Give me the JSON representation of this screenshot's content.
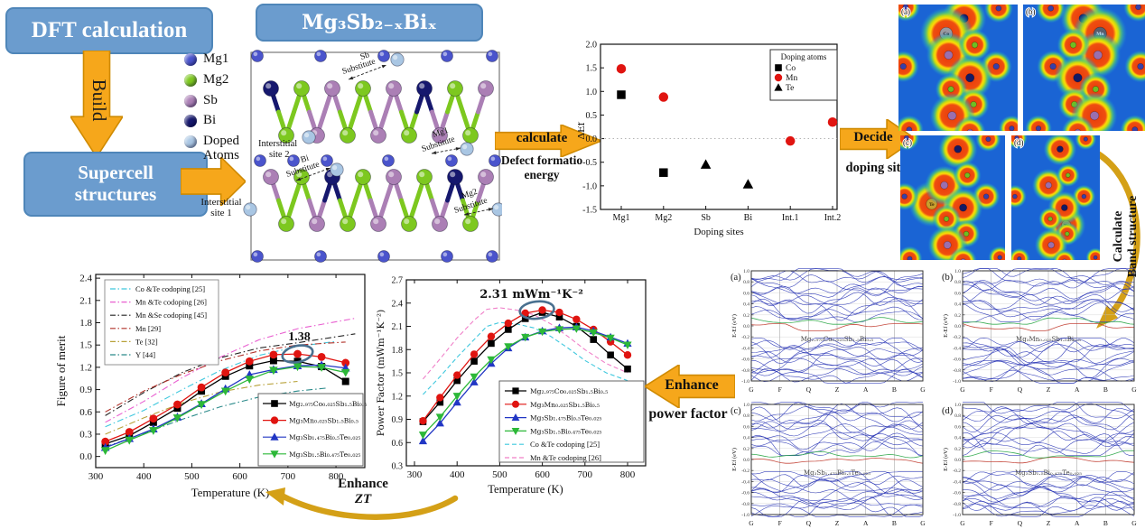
{
  "flow": {
    "dft_box_label": "DFT calculation",
    "build_label": "Build",
    "supercell_box_label": "Supercell structures",
    "calculate_arrow_label": "calculate",
    "calculate_sublabel_line1": "Defect formatio",
    "calculate_sublabel_line2": "energy",
    "decide_arrow_label": "Decide",
    "decide_sublabel": "doping sites",
    "calculate_band_line1": "Calculate",
    "calculate_band_line2": "Band structure",
    "enhance_pf_label": "Enhance",
    "enhance_pf_sublabel": "power factor",
    "enhance_zt_label": "Enhance",
    "enhance_zt_sublabel": "ZT",
    "arrow_color": "#F6A71B",
    "curve_color": "#D4A017"
  },
  "structure_panel": {
    "title": "Mg₃Sb₂₋ₓBiₓ",
    "box_color": "#6B9CCE",
    "legend": [
      {
        "label": "Mg1",
        "color": "#4A54CC"
      },
      {
        "label": "Mg2",
        "color": "#7DC81F"
      },
      {
        "label": "Sb",
        "color": "#AB7FB5"
      },
      {
        "label": "Bi",
        "color": "#16186E"
      },
      {
        "label": "Doped Atoms",
        "color": "#A9C6E3"
      }
    ],
    "site_labels": {
      "sb_substitute": {
        "line1": "Sb",
        "line2": "Substitute"
      },
      "interstitial_site2": {
        "line1": "Interstitial",
        "line2": "site 2"
      },
      "bi_substitute": {
        "line1": "Bi",
        "line2": "Substitute"
      },
      "mg1_substitute": {
        "line1": "Mg1",
        "line2": "Substitute"
      },
      "mg2_substitute": {
        "line1": "Mg2",
        "line2": "Substitute"
      },
      "interstitial_site1": {
        "line1": "Interstitial",
        "line2": "site 1"
      }
    }
  },
  "charge_density_panel": {
    "panel_labels": [
      "(a)",
      "(b)",
      "(c)",
      "(d)"
    ],
    "atom_labels": [
      "Co",
      "Mn",
      "Te",
      "Te"
    ]
  },
  "chart_data": [
    {
      "id": "defect_formation",
      "type": "scatter",
      "xlabel": "Doping sites",
      "ylabel": "ΔEf",
      "categories": [
        "Mg1",
        "Mg2",
        "Sb",
        "Bi",
        "Int.1",
        "Int.2"
      ],
      "ylim": [
        -1.5,
        2.0
      ],
      "yticks": [
        2.0,
        1.5,
        1.0,
        0.5,
        0.0,
        -0.5,
        -1.0,
        -1.5
      ],
      "legend_title": "Doping atoms",
      "zero_line": true,
      "series": [
        {
          "name": "Co",
          "marker": "square",
          "color": "#000000",
          "points": [
            [
              "Mg1",
              0.93
            ],
            [
              "Mg2",
              -0.72
            ]
          ]
        },
        {
          "name": "Mn",
          "marker": "circle",
          "color": "#E01410",
          "points": [
            [
              "Mg1",
              1.48
            ],
            [
              "Mg2",
              0.88
            ],
            [
              "Int.1",
              -0.05
            ],
            [
              "Int.2",
              0.35
            ]
          ]
        },
        {
          "name": "Te",
          "marker": "triangle-up",
          "color": "#000000",
          "points": [
            [
              "Sb",
              -0.55
            ],
            [
              "Bi",
              -0.97
            ]
          ]
        }
      ]
    },
    {
      "id": "figure_of_merit",
      "type": "line",
      "xlabel": "Temperature (K)",
      "ylabel": "Figure of merit",
      "xlim": [
        300,
        860
      ],
      "ylim": [
        -0.15,
        2.45
      ],
      "xticks": [
        300,
        400,
        500,
        600,
        700,
        800
      ],
      "yticks": [
        0.0,
        0.3,
        0.6,
        0.9,
        1.2,
        1.5,
        1.8,
        2.1,
        2.4
      ],
      "x": [
        320,
        370,
        420,
        470,
        520,
        570,
        620,
        670,
        720,
        770,
        820
      ],
      "series": [
        {
          "name": "Mg₂.₉₇₅Co₀.₀₂₅Sb₁.₅Bi₀.₅",
          "marker": "square",
          "color": "#000000",
          "values": [
            0.17,
            0.28,
            0.46,
            0.65,
            0.88,
            1.08,
            1.22,
            1.29,
            1.28,
            1.21,
            1.01
          ]
        },
        {
          "name": "Mg₃Mn₀.₀₂₅Sb₁.₅Bi₀.₅",
          "marker": "circle",
          "color": "#E01410",
          "values": [
            0.2,
            0.33,
            0.51,
            0.7,
            0.93,
            1.13,
            1.28,
            1.37,
            1.38,
            1.34,
            1.26
          ]
        },
        {
          "name": "Mg₃Sb₁.₄₇₅Bi₀.₅Te₀.₀₂₅",
          "marker": "triangle-up",
          "color": "#2136C4",
          "values": [
            0.12,
            0.24,
            0.37,
            0.53,
            0.71,
            0.91,
            1.1,
            1.17,
            1.22,
            1.23,
            1.19
          ]
        },
        {
          "name": "Mg₃Sb₁.₅Bi₀.₄₇₅Te₀.₀₂₅",
          "marker": "triangle-down",
          "color": "#2CB838",
          "values": [
            0.08,
            0.22,
            0.35,
            0.52,
            0.7,
            0.88,
            1.04,
            1.16,
            1.21,
            1.2,
            1.13
          ]
        }
      ],
      "reference_series": [
        {
          "name": "Co &Te codoping [25]",
          "color": "#3FC8DE",
          "points": [
            [
              320,
              0.4
            ],
            [
              400,
              0.62
            ],
            [
              480,
              0.9
            ],
            [
              560,
              1.16
            ],
            [
              640,
              1.36
            ],
            [
              720,
              1.48
            ],
            [
              800,
              1.55
            ]
          ]
        },
        {
          "name": "Mn &Te codoping [26]",
          "color": "#E95FD0",
          "points": [
            [
              320,
              0.46
            ],
            [
              400,
              0.74
            ],
            [
              480,
              1.06
            ],
            [
              560,
              1.34
            ],
            [
              640,
              1.57
            ],
            [
              720,
              1.72
            ],
            [
              840,
              1.86
            ]
          ]
        },
        {
          "name": "Mn &Se codoping [45]",
          "color": "#222222",
          "points": [
            [
              320,
              0.55
            ],
            [
              400,
              0.86
            ],
            [
              480,
              1.13
            ],
            [
              560,
              1.33
            ],
            [
              640,
              1.46
            ],
            [
              720,
              1.53
            ],
            [
              840,
              1.65
            ]
          ]
        },
        {
          "name": "Mn [29]",
          "color": "#B03028",
          "points": [
            [
              320,
              0.6
            ],
            [
              400,
              0.88
            ],
            [
              480,
              1.11
            ],
            [
              560,
              1.29
            ],
            [
              640,
              1.42
            ],
            [
              720,
              1.5
            ],
            [
              820,
              1.54
            ]
          ]
        },
        {
          "name": "Te [32]",
          "color": "#B8A23A",
          "points": [
            [
              320,
              0.3
            ],
            [
              400,
              0.52
            ],
            [
              480,
              0.72
            ],
            [
              560,
              0.87
            ],
            [
              640,
              0.96
            ],
            [
              720,
              1.01
            ]
          ]
        },
        {
          "name": "Y [44]",
          "color": "#2A8A8A",
          "points": [
            [
              320,
              0.13
            ],
            [
              400,
              0.31
            ],
            [
              480,
              0.5
            ],
            [
              560,
              0.67
            ],
            [
              640,
              0.8
            ],
            [
              720,
              0.88
            ],
            [
              780,
              0.92
            ]
          ]
        }
      ],
      "annotation": {
        "text": "1.38",
        "x": 720,
        "y": 1.38
      }
    },
    {
      "id": "power_factor",
      "type": "line",
      "xlabel": "Temperature (K)",
      "ylabel": "Power Factor (mWm⁻¹K⁻²)",
      "xlim": [
        300,
        830
      ],
      "ylim": [
        0.3,
        2.7
      ],
      "xticks": [
        300,
        400,
        500,
        600,
        700,
        800
      ],
      "yticks": [
        0.3,
        0.6,
        0.9,
        1.2,
        1.5,
        1.8,
        2.1,
        2.4,
        2.7
      ],
      "x": [
        320,
        360,
        400,
        440,
        480,
        520,
        560,
        600,
        640,
        680,
        720,
        760,
        800
      ],
      "series": [
        {
          "name": "Mg₂.₉₇₅Co₀.₀₂₅Sb₁.₅Bi₀.₅",
          "marker": "square",
          "color": "#000000",
          "values": [
            0.87,
            1.12,
            1.4,
            1.65,
            1.88,
            2.06,
            2.2,
            2.28,
            2.22,
            2.1,
            1.93,
            1.73,
            1.55
          ]
        },
        {
          "name": "Mg₃Mn₀.₀₂₅Sb₁.₅Bi₀.₅",
          "marker": "circle",
          "color": "#E01410",
          "values": [
            0.88,
            1.18,
            1.47,
            1.74,
            1.97,
            2.14,
            2.27,
            2.31,
            2.28,
            2.19,
            2.06,
            1.9,
            1.73
          ]
        },
        {
          "name": "Mg₃Sb₁.₄₇₅Bi₀.₅Te₀.₀₂₅",
          "marker": "triangle-up",
          "color": "#2136C4",
          "values": [
            0.62,
            0.85,
            1.12,
            1.38,
            1.62,
            1.82,
            1.96,
            2.04,
            2.08,
            2.09,
            2.04,
            1.96,
            1.88
          ]
        },
        {
          "name": "Mg₃Sb₁.₅Bi₀.₄₇₅Te₀.₀₂₅",
          "marker": "triangle-down",
          "color": "#2CB838",
          "values": [
            0.7,
            0.93,
            1.2,
            1.45,
            1.67,
            1.84,
            1.96,
            2.03,
            2.06,
            2.07,
            2.02,
            1.95,
            1.86
          ]
        }
      ],
      "reference_series": [
        {
          "name": "Co &Te codoping [25]",
          "color": "#3FC8DE",
          "points": [
            [
              320,
              1.22
            ],
            [
              360,
              1.45
            ],
            [
              400,
              1.7
            ],
            [
              440,
              1.93
            ],
            [
              470,
              2.1
            ],
            [
              500,
              2.15
            ],
            [
              540,
              2.13
            ],
            [
              580,
              2.08
            ],
            [
              620,
              1.97
            ],
            [
              660,
              1.82
            ],
            [
              700,
              1.66
            ],
            [
              750,
              1.5
            ],
            [
              800,
              1.4
            ]
          ]
        },
        {
          "name": "Mn &Te codoping [26]",
          "color": "#F07FC8",
          "points": [
            [
              320,
              1.42
            ],
            [
              360,
              1.68
            ],
            [
              400,
              1.95
            ],
            [
              440,
              2.18
            ],
            [
              470,
              2.32
            ],
            [
              500,
              2.34
            ],
            [
              540,
              2.31
            ],
            [
              580,
              2.25
            ],
            [
              620,
              2.13
            ],
            [
              660,
              1.97
            ],
            [
              700,
              1.8
            ],
            [
              750,
              1.62
            ],
            [
              800,
              1.5
            ]
          ]
        }
      ],
      "annotation": {
        "text": "2.31 mWm⁻¹K⁻²",
        "x": 600,
        "y": 2.31
      }
    },
    {
      "id": "band_structures",
      "type": "line",
      "ylabel": "E-Ef (eV)",
      "ylim": [
        -1.0,
        1.0
      ],
      "yticks": [
        1.0,
        0.8,
        0.6,
        0.4,
        0.2,
        0.0,
        -0.2,
        -0.4,
        -0.6,
        -0.8,
        -1.0
      ],
      "kpoints": [
        "G",
        "F",
        "Q",
        "Z",
        "A",
        "B",
        "G"
      ],
      "panels": [
        {
          "label": "(a)",
          "composition": "Mg₂.₉₇₅Co₀.₀₂₅Sb₁.₅Bi₀.₅"
        },
        {
          "label": "(b)",
          "composition": "Mg₃Mn₀.₀₂₅Sb₁.₅Bi₀.₅"
        },
        {
          "label": "(c)",
          "composition": "Mg₃Sb₁.₄₇₅Bi₀.₅Te₀.₀₂₅"
        },
        {
          "label": "(d)",
          "composition": "Mg₃Sb₁.₅Bi₀.₄₇₅Te₀.₀₂₅"
        }
      ]
    }
  ]
}
